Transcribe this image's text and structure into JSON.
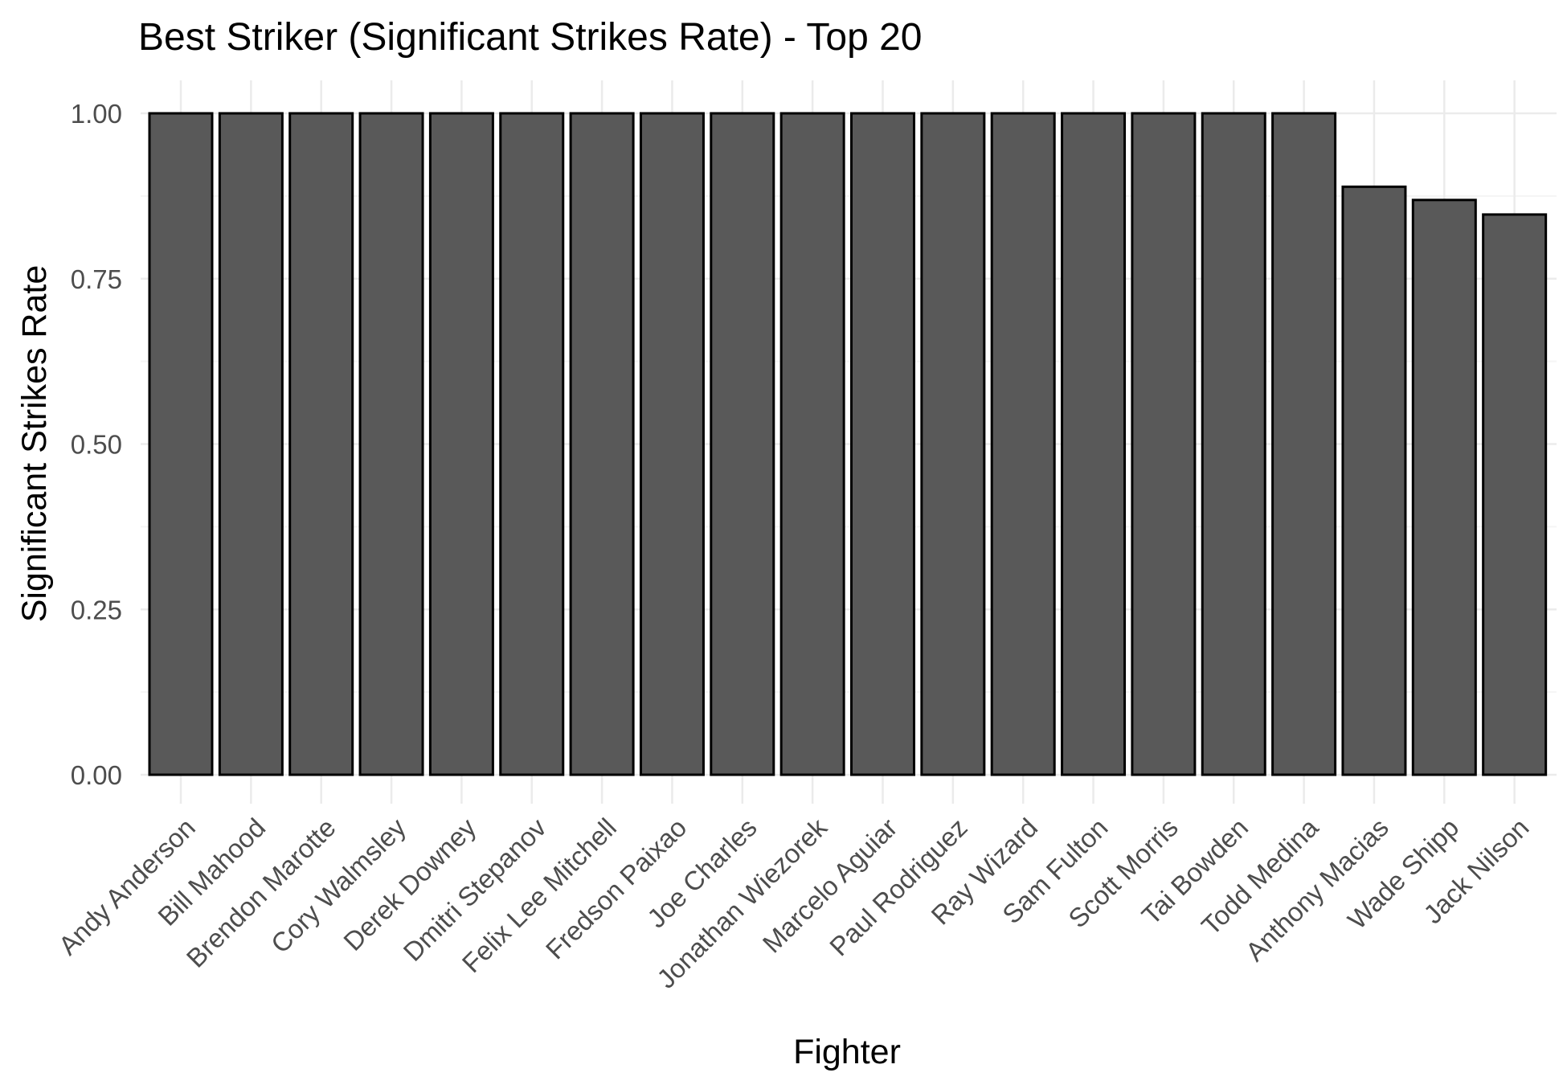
{
  "chart_data": {
    "type": "bar",
    "title": "Best Striker (Significant Strikes Rate) - Top 20",
    "xlabel": "Fighter",
    "ylabel": "Significant Strikes Rate",
    "categories": [
      "Andy Anderson",
      "Bill Mahood",
      "Brendon Marotte",
      "Cory Walmsley",
      "Derek Downey",
      "Dmitri Stepanov",
      "Felix Lee Mitchell",
      "Fredson Paixao",
      "Joe Charles",
      "Jonathan Wiezorek",
      "Marcelo Aguiar",
      "Paul Rodriguez",
      "Ray Wizard",
      "Sam Fulton",
      "Scott Morris",
      "Tai Bowden",
      "Todd Medina",
      "Anthony Macias",
      "Wade Shipp",
      "Jack Nilson"
    ],
    "values": [
      1.0,
      1.0,
      1.0,
      1.0,
      1.0,
      1.0,
      1.0,
      1.0,
      1.0,
      1.0,
      1.0,
      1.0,
      1.0,
      1.0,
      1.0,
      1.0,
      1.0,
      0.889,
      0.869,
      0.847
    ],
    "ylim": [
      0,
      1.0
    ],
    "yticks": [
      "0.00",
      "0.25",
      "0.50",
      "0.75",
      "1.00"
    ],
    "ytick_values": [
      0,
      0.25,
      0.5,
      0.75,
      1.0
    ],
    "grid": true,
    "legend": "none",
    "colors": {
      "bar_fill": "#595959",
      "bar_stroke": "#000000",
      "grid_major": "#ebebeb",
      "grid_minor": "#f5f5f5",
      "text": "#000000",
      "tick_text": "#4d4d4d"
    }
  }
}
